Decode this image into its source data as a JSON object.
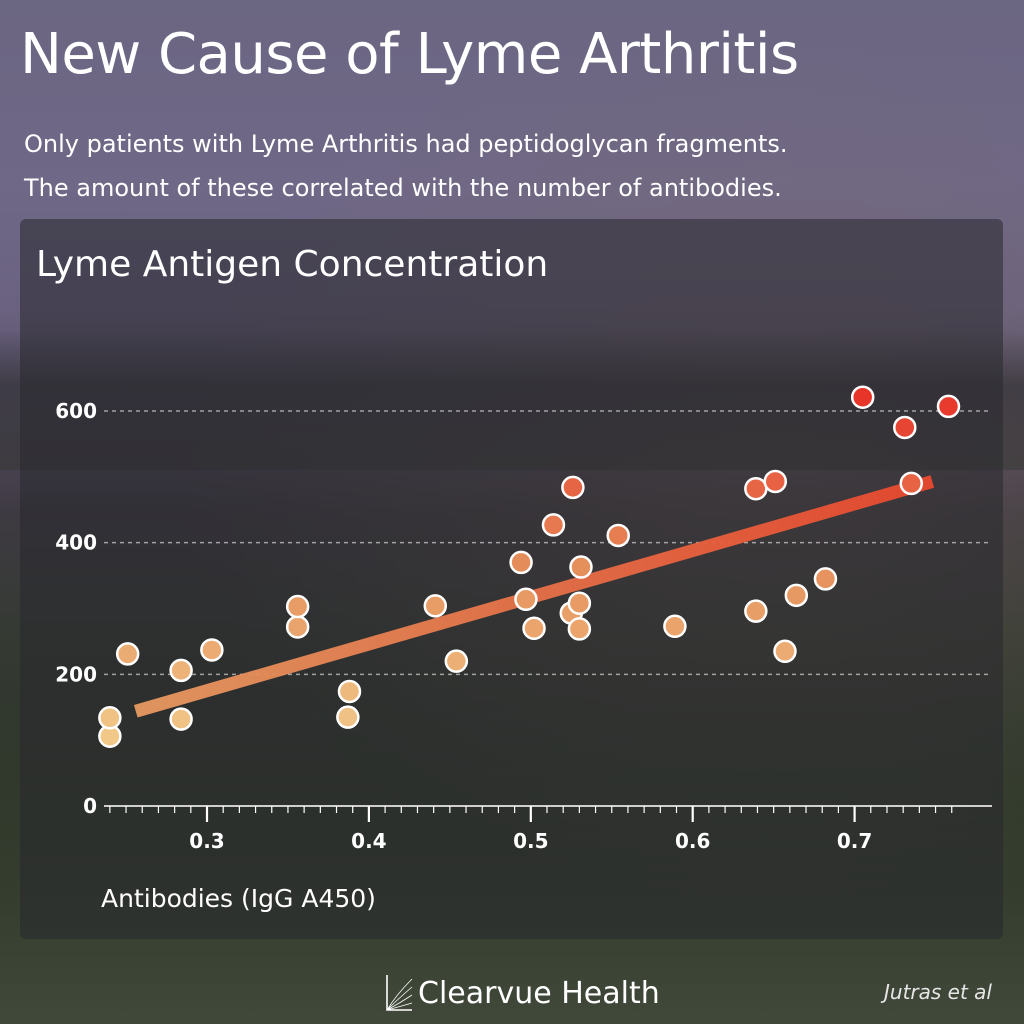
{
  "header": {
    "title": "New Cause of Lyme Arthritis",
    "subtitle_line1": "Only patients with Lyme Arthritis had peptidoglycan fragments.",
    "subtitle_line2": "The amount of these correlated with the number of antibodies."
  },
  "footer": {
    "brand": "Clearvue Health",
    "source": "Jutras et al"
  },
  "chart_data": {
    "type": "scatter",
    "title": "Lyme Antigen Concentration",
    "xlabel": "Antibodies (IgG A450)",
    "ylabel": "",
    "xlim": [
      0.24,
      0.76
    ],
    "ylim": [
      0,
      650
    ],
    "x_ticks": [
      0.3,
      0.4,
      0.5,
      0.6,
      0.7
    ],
    "x_tick_labels": [
      "0.3",
      "0.4",
      "0.5",
      "0.6",
      "0.7"
    ],
    "y_ticks": [
      0,
      200,
      400,
      600
    ],
    "y_tick_labels": [
      "0",
      "200",
      "400",
      "600"
    ],
    "grid": "horizontal dashed",
    "color_scale": [
      "#f2c98a",
      "#e5905c",
      "#e8352a"
    ],
    "points": [
      {
        "x": 0.24,
        "y": 106
      },
      {
        "x": 0.24,
        "y": 134
      },
      {
        "x": 0.251,
        "y": 231
      },
      {
        "x": 0.284,
        "y": 132
      },
      {
        "x": 0.284,
        "y": 206
      },
      {
        "x": 0.303,
        "y": 237
      },
      {
        "x": 0.356,
        "y": 272
      },
      {
        "x": 0.356,
        "y": 303
      },
      {
        "x": 0.387,
        "y": 135
      },
      {
        "x": 0.388,
        "y": 174
      },
      {
        "x": 0.441,
        "y": 304
      },
      {
        "x": 0.454,
        "y": 220
      },
      {
        "x": 0.494,
        "y": 370
      },
      {
        "x": 0.497,
        "y": 314
      },
      {
        "x": 0.502,
        "y": 270
      },
      {
        "x": 0.514,
        "y": 427
      },
      {
        "x": 0.525,
        "y": 293
      },
      {
        "x": 0.526,
        "y": 484
      },
      {
        "x": 0.53,
        "y": 308
      },
      {
        "x": 0.53,
        "y": 269
      },
      {
        "x": 0.531,
        "y": 363
      },
      {
        "x": 0.554,
        "y": 411
      },
      {
        "x": 0.589,
        "y": 273
      },
      {
        "x": 0.639,
        "y": 296
      },
      {
        "x": 0.639,
        "y": 482
      },
      {
        "x": 0.651,
        "y": 493
      },
      {
        "x": 0.657,
        "y": 235
      },
      {
        "x": 0.664,
        "y": 320
      },
      {
        "x": 0.682,
        "y": 345
      },
      {
        "x": 0.705,
        "y": 621
      },
      {
        "x": 0.735,
        "y": 490
      },
      {
        "x": 0.731,
        "y": 575
      },
      {
        "x": 0.758,
        "y": 607
      }
    ],
    "trendline": {
      "x": [
        0.256,
        0.748
      ],
      "y": [
        144,
        493
      ]
    }
  }
}
